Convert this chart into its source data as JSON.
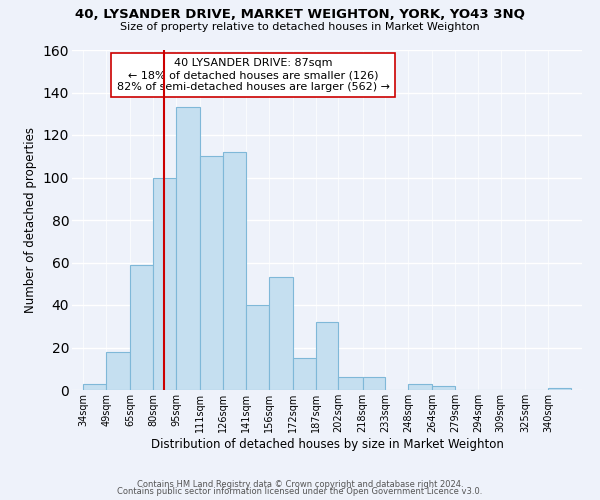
{
  "title": "40, LYSANDER DRIVE, MARKET WEIGHTON, YORK, YO43 3NQ",
  "subtitle": "Size of property relative to detached houses in Market Weighton",
  "xlabel": "Distribution of detached houses by size in Market Weighton",
  "ylabel": "Number of detached properties",
  "bar_color": "#c5dff0",
  "bar_edge_color": "#7fb8d8",
  "bin_labels": [
    "34sqm",
    "49sqm",
    "65sqm",
    "80sqm",
    "95sqm",
    "111sqm",
    "126sqm",
    "141sqm",
    "156sqm",
    "172sqm",
    "187sqm",
    "202sqm",
    "218sqm",
    "233sqm",
    "248sqm",
    "264sqm",
    "279sqm",
    "294sqm",
    "309sqm",
    "325sqm",
    "340sqm"
  ],
  "bar_heights": [
    3,
    18,
    59,
    100,
    133,
    110,
    112,
    40,
    53,
    15,
    32,
    6,
    6,
    0,
    3,
    2,
    0,
    0,
    0,
    0,
    1
  ],
  "bin_edges": [
    34,
    49,
    65,
    80,
    95,
    111,
    126,
    141,
    156,
    172,
    187,
    202,
    218,
    233,
    248,
    264,
    279,
    294,
    309,
    325,
    340
  ],
  "annotation_title": "40 LYSANDER DRIVE: 87sqm",
  "annotation_line1": "← 18% of detached houses are smaller (126)",
  "annotation_line2": "82% of semi-detached houses are larger (562) →",
  "vline_color": "#cc0000",
  "annotation_box_edge": "#cc0000",
  "footer_line1": "Contains HM Land Registry data © Crown copyright and database right 2024.",
  "footer_line2": "Contains public sector information licensed under the Open Government Licence v3.0.",
  "ylim": [
    0,
    160
  ],
  "background_color": "#eef2fa"
}
